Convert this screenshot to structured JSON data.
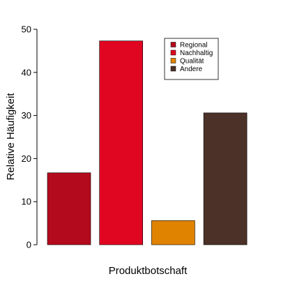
{
  "chart_data": {
    "type": "bar",
    "title": "",
    "xlabel": "Produktbotschaft",
    "ylabel": "Relative Häufigkeit",
    "categories": [
      "Regional",
      "Nachhaltig",
      "Qualität",
      "Andere"
    ],
    "values": [
      16.7,
      47.3,
      5.6,
      30.6
    ],
    "colors": [
      "#B30A1E",
      "#E00521",
      "#E08300",
      "#4B3128"
    ],
    "ylim": [
      0,
      50
    ],
    "yticks": [
      0,
      10,
      20,
      30,
      40,
      50
    ],
    "grid": false,
    "legend": {
      "position": "top-right",
      "entries": [
        "Regional",
        "Nachhaltig",
        "Qualität",
        "Andere"
      ]
    }
  }
}
